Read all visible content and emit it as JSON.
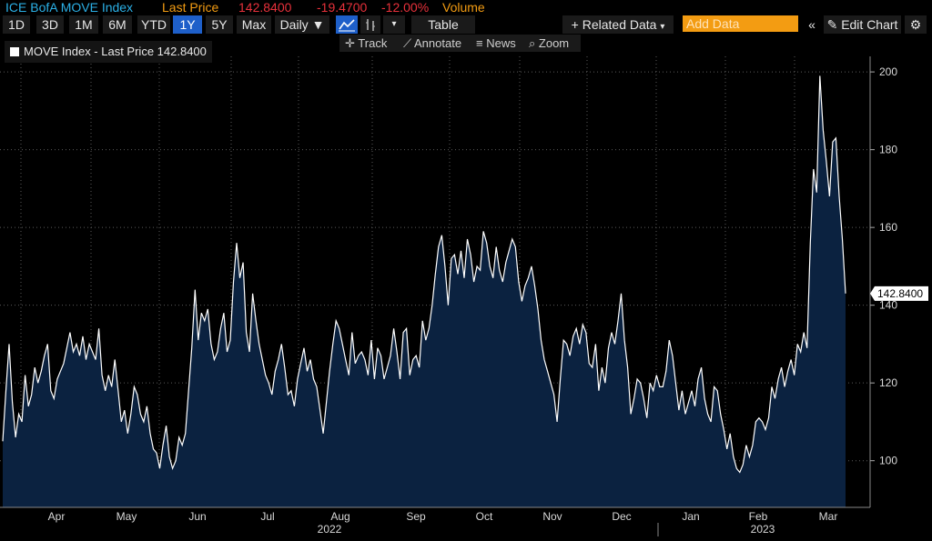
{
  "header": {
    "index_name": "ICE BofA MOVE Index",
    "last_price_label": "Last Price",
    "last_price": "142.8400",
    "change": "-19.4700",
    "change_pct": "-12.00%",
    "volume_label": "Volume"
  },
  "toolbar": {
    "ranges": [
      "1D",
      "3D",
      "1M",
      "6M",
      "YTD",
      "1Y",
      "5Y",
      "Max"
    ],
    "active_range": "1Y",
    "frequency": "Daily",
    "table_label": "Table",
    "related_data_label": "Related Data",
    "add_data_placeholder": "Add Data",
    "edit_chart_label": "Edit Chart"
  },
  "subtoolbar": {
    "track": "Track",
    "annotate": "Annotate",
    "news": "News",
    "zoom": "Zoom"
  },
  "legend": {
    "label": "MOVE Index - Last Price 142.8400"
  },
  "colors": {
    "line": "#ffffff",
    "fill": "#0b2240",
    "title": "#f39c12",
    "index_name": "#2bb0e6",
    "negative": "#e8313b",
    "active_button": "#1e5fc9",
    "price_tag_bg": "#ffffff",
    "grid": "#5a5a5a"
  },
  "chart_data": {
    "type": "area",
    "ylim": [
      88,
      204
    ],
    "y_ticks": [
      100,
      120,
      140,
      160,
      180,
      200
    ],
    "grid": true,
    "last_value_label": "142.8400",
    "x_month_labels": [
      "Apr",
      "May",
      "Jun",
      "Jul",
      "Aug",
      "Sep",
      "Oct",
      "Nov",
      "Dec",
      "Jan",
      "Feb",
      "Mar"
    ],
    "x_year_labels": [
      "2022",
      "2023"
    ],
    "series": [
      {
        "values": [
          105,
          118,
          130,
          115,
          106,
          112,
          110,
          122,
          114,
          117,
          124,
          120,
          123,
          127,
          130,
          118,
          116,
          121,
          123,
          125,
          129,
          133,
          128,
          130,
          127,
          132,
          126,
          130,
          128,
          126,
          134,
          122,
          118,
          122,
          119,
          126,
          118,
          110,
          113,
          107,
          112,
          119,
          117,
          112,
          110,
          114,
          107,
          103,
          102,
          98,
          104,
          109,
          101,
          98,
          100,
          106,
          104,
          107,
          118,
          129,
          144,
          131,
          138,
          136,
          139,
          130,
          126,
          128,
          134,
          138,
          128,
          131,
          146,
          156,
          147,
          151,
          133,
          128,
          143,
          136,
          130,
          126,
          122,
          120,
          117,
          123,
          126,
          130,
          124,
          117,
          118,
          114,
          121,
          125,
          129,
          123,
          126,
          121,
          119,
          113,
          107,
          115,
          123,
          130,
          136,
          134,
          130,
          126,
          122,
          133,
          125,
          127,
          128,
          126,
          122,
          131,
          121,
          129,
          127,
          121,
          124,
          127,
          134,
          128,
          121,
          133,
          134,
          122,
          126,
          127,
          124,
          136,
          131,
          134,
          140,
          148,
          155,
          158,
          150,
          140,
          152,
          153,
          148,
          154,
          147,
          157,
          153,
          146,
          150,
          149,
          159,
          156,
          150,
          147,
          155,
          149,
          146,
          151,
          154,
          157,
          155,
          146,
          141,
          145,
          147,
          150,
          145,
          139,
          131,
          126,
          123,
          120,
          117,
          110,
          121,
          131,
          130,
          127,
          132,
          134,
          130,
          135,
          133,
          125,
          124,
          130,
          118,
          124,
          120,
          129,
          133,
          130,
          136,
          143,
          131,
          124,
          112,
          116,
          121,
          120,
          116,
          111,
          120,
          118,
          122,
          119,
          119,
          123,
          131,
          127,
          120,
          113,
          118,
          112,
          115,
          118,
          114,
          121,
          124,
          116,
          112,
          110,
          119,
          118,
          112,
          108,
          103,
          107,
          101,
          98,
          97,
          99,
          104,
          101,
          104,
          110,
          111,
          110,
          108,
          111,
          119,
          116,
          121,
          124,
          119,
          123,
          126,
          122,
          130,
          128,
          133,
          129,
          156,
          175,
          169,
          199,
          185,
          177,
          168,
          182,
          183,
          168,
          157,
          143
        ]
      }
    ]
  }
}
